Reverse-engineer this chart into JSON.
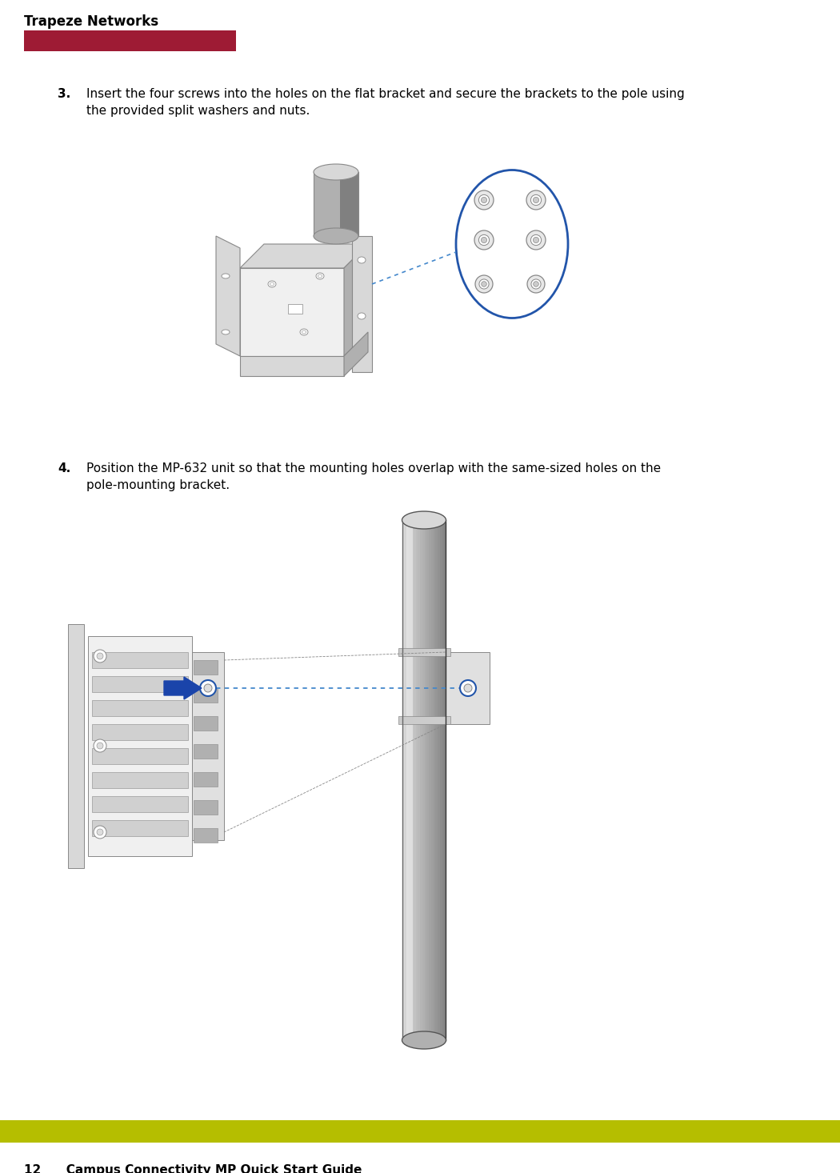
{
  "page_width": 10.5,
  "page_height": 14.66,
  "dpi": 100,
  "background_color": "#ffffff",
  "header_text": "Trapeze Networks",
  "header_text_color": "#000000",
  "header_text_fontsize": 12,
  "header_text_weight": "bold",
  "header_bar_color": "#9e1b34",
  "footer_bar_color": "#b5be00",
  "footer_text": "12      Campus Connectivity MP Quick Start Guide",
  "footer_text_fontsize": 11,
  "footer_text_weight": "bold",
  "footer_text_color": "#000000",
  "step3_number": "3.",
  "step3_text": "Insert the four screws into the holes on the flat bracket and secure the brackets to the pole using\nthe provided split washers and nuts.",
  "step3_fontsize": 11,
  "step4_number": "4.",
  "step4_text": "Position the MP-632 unit so that the mounting holes overlap with the same-sized holes on the\npole-mounting bracket.",
  "step4_fontsize": 11,
  "ellipse_color": "#2255aa",
  "dots_color": "#4488cc",
  "arrow_color": "#1a44aa",
  "line_color": "#888888",
  "shade_light": "#d8d8d8",
  "shade_mid": "#b0b0b0",
  "shade_dark": "#808080",
  "shade_darker": "#606060"
}
